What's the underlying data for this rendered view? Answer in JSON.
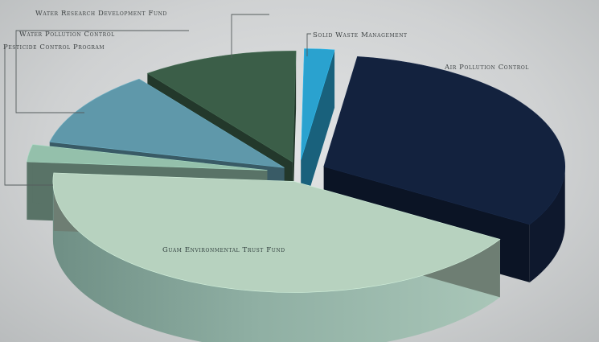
{
  "chart_data": {
    "type": "pie",
    "style": "3d-exploded",
    "slices": [
      {
        "label": "Air Pollution Control",
        "value": 31.5,
        "color": "#13223e"
      },
      {
        "label": "Guam Environmental Trust Fund",
        "value": 42.5,
        "color": "#b7d2bf"
      },
      {
        "label": "Pesticide Control Program",
        "value": 2.5,
        "color": "#94c0ab"
      },
      {
        "label": "Water Pollution Control",
        "value": 11.0,
        "color": "#5f98aa"
      },
      {
        "label": "Water Research Development Fund",
        "value": 10.5,
        "color": "#3b5e48"
      },
      {
        "label": "Solid Waste Management",
        "value": 2.0,
        "color": "#2aa2cf"
      }
    ],
    "legend": "none",
    "labels": "callouts"
  }
}
